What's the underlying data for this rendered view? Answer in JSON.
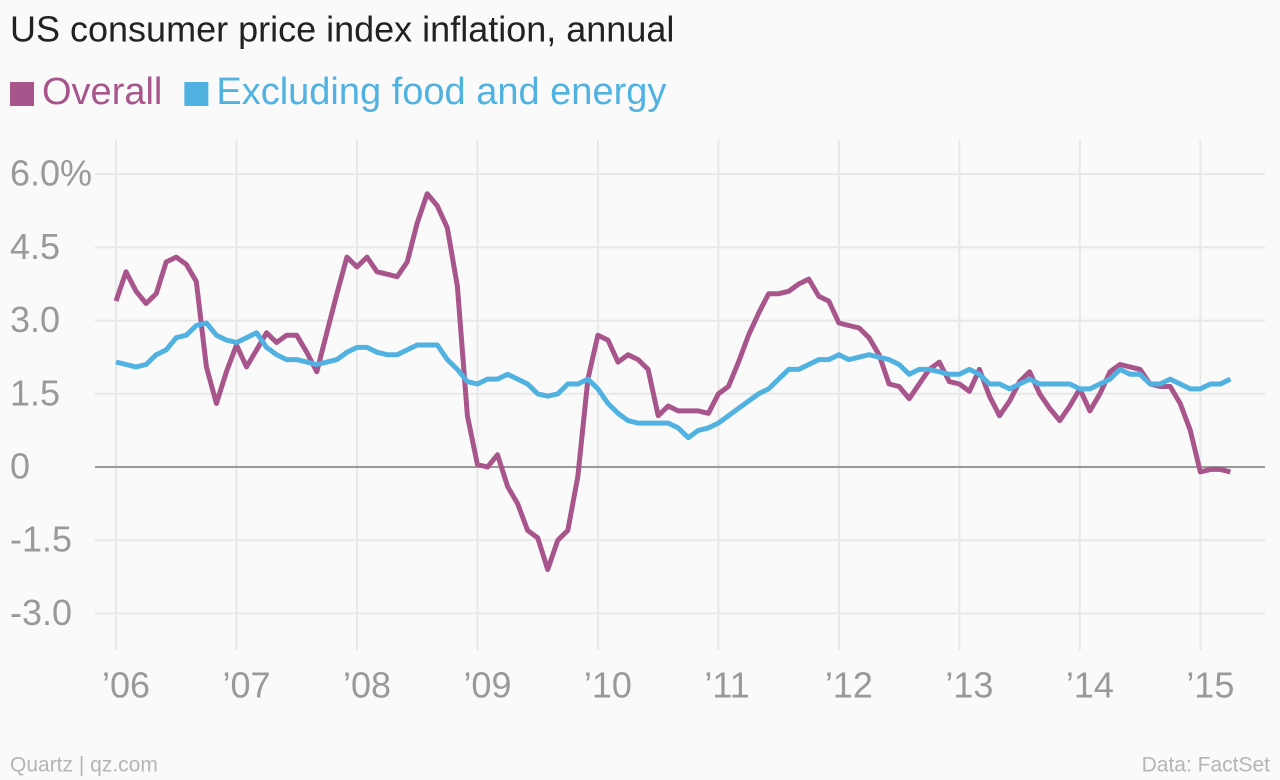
{
  "chart_data": {
    "type": "line",
    "title": "US consumer price index inflation, annual",
    "source": "Data: FactSet",
    "credit": "Quartz | qz.com",
    "categories": [
      "’06",
      null,
      null,
      null,
      null,
      null,
      null,
      null,
      null,
      null,
      null,
      null,
      "’07",
      null,
      null,
      null,
      null,
      null,
      null,
      null,
      null,
      null,
      null,
      null,
      "’08",
      null,
      null,
      null,
      null,
      null,
      null,
      null,
      null,
      null,
      null,
      null,
      "’09",
      null,
      null,
      null,
      null,
      null,
      null,
      null,
      null,
      null,
      null,
      null,
      "’10",
      null,
      null,
      null,
      null,
      null,
      null,
      null,
      null,
      null,
      null,
      null,
      "’11",
      null,
      null,
      null,
      null,
      null,
      null,
      null,
      null,
      null,
      null,
      null,
      "’12",
      null,
      null,
      null,
      null,
      null,
      null,
      null,
      null,
      null,
      null,
      null,
      "’13",
      null,
      null,
      null,
      null,
      null,
      null,
      null,
      null,
      null,
      null,
      null,
      "’14",
      null,
      null,
      null,
      null,
      null,
      null,
      null,
      null,
      null,
      null,
      null,
      "’15",
      null,
      null,
      null
    ],
    "series": [
      {
        "name": "Overall",
        "color": "#a8558c",
        "values": [
          3.4,
          4.0,
          3.6,
          3.35,
          3.55,
          4.2,
          4.3,
          4.15,
          3.8,
          2.05,
          1.3,
          1.95,
          2.5,
          2.05,
          2.4,
          2.75,
          2.55,
          2.7,
          2.7,
          2.35,
          1.95,
          2.75,
          3.55,
          4.3,
          4.1,
          4.3,
          4.0,
          3.95,
          3.9,
          4.2,
          5.0,
          5.6,
          5.35,
          4.9,
          3.7,
          1.05,
          0.05,
          0.0,
          0.25,
          -0.4,
          -0.75,
          -1.3,
          -1.45,
          -2.1,
          -1.5,
          -1.3,
          -0.2,
          1.8,
          2.7,
          2.6,
          2.15,
          2.3,
          2.2,
          2.0,
          1.05,
          1.25,
          1.15,
          1.15,
          1.15,
          1.1,
          1.5,
          1.65,
          2.15,
          2.7,
          3.15,
          3.55,
          3.55,
          3.6,
          3.75,
          3.85,
          3.5,
          3.4,
          2.95,
          2.9,
          2.85,
          2.65,
          2.3,
          1.7,
          1.65,
          1.4,
          1.7,
          2.0,
          2.15,
          1.75,
          1.7,
          1.55,
          2.0,
          1.45,
          1.05,
          1.35,
          1.75,
          1.95,
          1.5,
          1.2,
          0.95,
          1.25,
          1.6,
          1.15,
          1.5,
          1.95,
          2.1,
          2.05,
          2.0,
          1.7,
          1.65,
          1.65,
          1.3,
          0.75,
          -0.1,
          -0.05,
          -0.05,
          -0.1
        ]
      },
      {
        "name": "Excluding food and energy",
        "color": "#51b2e1",
        "values": [
          2.15,
          2.1,
          2.05,
          2.1,
          2.3,
          2.4,
          2.65,
          2.7,
          2.9,
          2.95,
          2.7,
          2.6,
          2.55,
          2.65,
          2.75,
          2.45,
          2.3,
          2.2,
          2.2,
          2.15,
          2.1,
          2.15,
          2.2,
          2.35,
          2.45,
          2.45,
          2.35,
          2.3,
          2.3,
          2.4,
          2.5,
          2.5,
          2.5,
          2.2,
          2.0,
          1.75,
          1.7,
          1.8,
          1.8,
          1.9,
          1.8,
          1.7,
          1.5,
          1.45,
          1.5,
          1.7,
          1.7,
          1.8,
          1.6,
          1.3,
          1.1,
          0.95,
          0.9,
          0.9,
          0.9,
          0.9,
          0.8,
          0.6,
          0.75,
          0.8,
          0.9,
          1.05,
          1.2,
          1.35,
          1.5,
          1.6,
          1.8,
          2.0,
          2.0,
          2.1,
          2.2,
          2.2,
          2.3,
          2.2,
          2.25,
          2.3,
          2.25,
          2.2,
          2.1,
          1.9,
          2.0,
          2.0,
          1.95,
          1.9,
          1.9,
          2.0,
          1.9,
          1.7,
          1.7,
          1.6,
          1.7,
          1.8,
          1.7,
          1.7,
          1.7,
          1.7,
          1.6,
          1.6,
          1.7,
          1.8,
          2.0,
          1.9,
          1.9,
          1.7,
          1.7,
          1.8,
          1.7,
          1.6,
          1.6,
          1.7,
          1.7,
          1.8
        ]
      }
    ],
    "ylim": [
      -3.75,
      6.7
    ],
    "yticks": [
      {
        "value": 6,
        "label": "6.0%"
      },
      4.5,
      {
        "value": 3,
        "label": "3.0"
      },
      1.5,
      0,
      -1.5,
      {
        "value": -3,
        "label": "-3.0"
      }
    ],
    "grid": true
  }
}
